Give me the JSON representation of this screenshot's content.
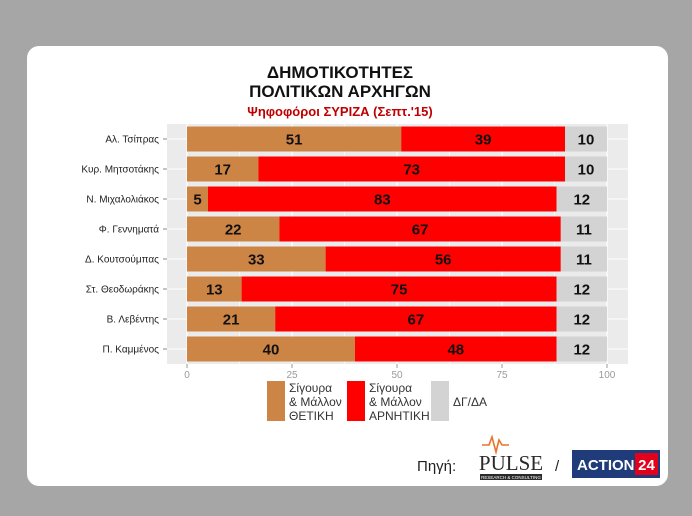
{
  "chart_data": {
    "type": "bar",
    "stacked": true,
    "orientation": "horizontal",
    "title_line1": "ΔΗΜΟΤΙΚΟΤΗΤΕΣ",
    "title_line2": "ΠΟΛΙΤΙΚΩΝ ΑΡΧΗΓΩΝ",
    "subtitle": "Ψηφοφόροι ΣΥΡΙΖΑ (Σεπτ.'15)",
    "categories": [
      "Αλ. Τσίπρας",
      "Κυρ. Μητσοτάκης",
      "Ν. Μιχαλολιάκος",
      "Φ. Γεννηματά",
      "Δ. Κουτσούμπας",
      "Στ. Θεοδωράκης",
      "Β. Λεβέντης",
      "Π. Καμμένος"
    ],
    "series": [
      {
        "name": "Σίγουρα & Μάλλον ΘΕΤΙΚΗ",
        "legend_lines": [
          "Σίγουρα",
          "& Μάλλον",
          "ΘΕΤΙΚΗ"
        ],
        "color": "#cd8546",
        "values": [
          51,
          17,
          5,
          22,
          33,
          13,
          21,
          40
        ]
      },
      {
        "name": "Σίγουρα & Μάλλον ΑΡΝΗΤΙΚΗ",
        "legend_lines": [
          "Σίγουρα",
          "& Μάλλον",
          "ΑΡΝΗΤΙΚΗ"
        ],
        "color": "#ff0000",
        "values": [
          39,
          73,
          83,
          67,
          56,
          75,
          67,
          48
        ]
      },
      {
        "name": "ΔΓ/ΔΑ",
        "legend_lines": [
          "ΔΓ/ΔΑ"
        ],
        "color": "#d3d3d3",
        "values": [
          10,
          10,
          12,
          11,
          11,
          12,
          12,
          12
        ]
      }
    ],
    "xlim": [
      0,
      100
    ],
    "xticks": [
      0,
      25,
      50,
      75,
      100
    ],
    "grid": true,
    "legend_position": "bottom"
  },
  "source": {
    "label": "Πηγή:",
    "separator": "/",
    "logo_pulse": "PULSE",
    "logo_pulse_tagline": "RESEARCH & CONSULTING",
    "logo_action": "ACTION",
    "logo_action_number": "24"
  },
  "colors": {
    "panel_background": "#ebebeb",
    "grid": "#ffffff",
    "action_blue": "#1f3b7a",
    "action_red": "#e3001b"
  }
}
